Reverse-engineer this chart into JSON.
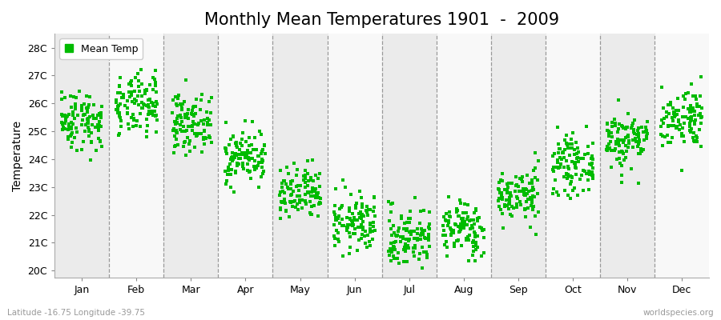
{
  "title": "Monthly Mean Temperatures 1901  -  2009",
  "ylabel": "Temperature",
  "months": [
    "Jan",
    "Feb",
    "Mar",
    "Apr",
    "May",
    "Jun",
    "Jul",
    "Aug",
    "Sep",
    "Oct",
    "Nov",
    "Dec"
  ],
  "mean_temps": [
    25.4,
    25.9,
    25.3,
    24.1,
    22.7,
    21.7,
    21.2,
    21.5,
    22.7,
    23.8,
    24.7,
    25.5
  ],
  "std_temps": [
    0.55,
    0.55,
    0.5,
    0.48,
    0.5,
    0.52,
    0.55,
    0.5,
    0.48,
    0.5,
    0.52,
    0.55
  ],
  "ylim_min": 19.75,
  "ylim_max": 28.5,
  "ytick_labels": [
    "20C",
    "21C",
    "22C",
    "23C",
    "24C",
    "25C",
    "26C",
    "27C",
    "28C"
  ],
  "ytick_values": [
    20,
    21,
    22,
    23,
    24,
    25,
    26,
    27,
    28
  ],
  "n_years": 109,
  "marker_color": "#00BB00",
  "marker_size": 9,
  "background_light": "#EBEBEB",
  "background_white": "#F8F8F8",
  "dashed_line_color": "#999999",
  "title_fontsize": 15,
  "label_fontsize": 10,
  "tick_fontsize": 9,
  "legend_label": "Mean Temp",
  "bottom_left_text": "Latitude -16.75 Longitude -39.75",
  "bottom_right_text": "worldspecies.org",
  "seed": 42
}
